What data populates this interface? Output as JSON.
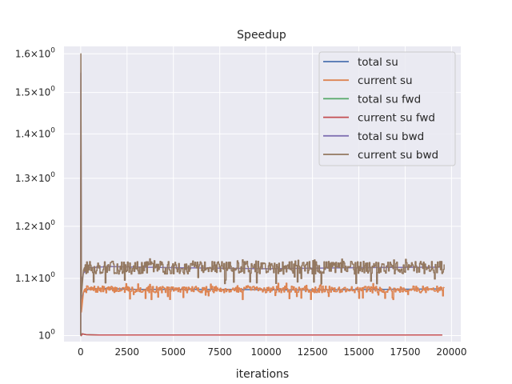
{
  "chart_data": {
    "type": "line",
    "title": "Speedup",
    "xlabel": "iterations",
    "ylabel": "",
    "yscale": "log",
    "xlim": [
      -900,
      20500
    ],
    "ylim": [
      0.99,
      1.62
    ],
    "grid": true,
    "legend_position": "top-right",
    "x_ticks": [
      0,
      2500,
      5000,
      7500,
      10000,
      12500,
      15000,
      17500,
      20000
    ],
    "x_tick_labels": [
      "0",
      "2500",
      "5000",
      "7500",
      "10000",
      "12500",
      "15000",
      "17500",
      "20000"
    ],
    "y_ticks": [
      1.0,
      1.1,
      1.2,
      1.3,
      1.4,
      1.5,
      1.6
    ],
    "y_tick_labels": [
      {
        "base": "10",
        "exp": "0",
        "coef": ""
      },
      {
        "base": "10",
        "exp": "0",
        "coef": "1.1×"
      },
      {
        "base": "10",
        "exp": "0",
        "coef": "1.2×"
      },
      {
        "base": "10",
        "exp": "0",
        "coef": "1.3×"
      },
      {
        "base": "10",
        "exp": "0",
        "coef": "1.4×"
      },
      {
        "base": "10",
        "exp": "0",
        "coef": "1.5×"
      },
      {
        "base": "10",
        "exp": "0",
        "coef": "1.6×"
      }
    ],
    "x_end": 19600,
    "series": [
      {
        "name": "total su",
        "color": "#4c72b0",
        "kind": "smooth",
        "points": [
          [
            0,
            1.0
          ],
          [
            10,
            1.3
          ],
          [
            40,
            1.06
          ],
          [
            150,
            1.075
          ],
          [
            400,
            1.08
          ],
          [
            1000,
            1.082
          ],
          [
            3000,
            1.08
          ],
          [
            8000,
            1.08
          ],
          [
            12000,
            1.079
          ],
          [
            16000,
            1.08
          ],
          [
            19600,
            1.081
          ]
        ]
      },
      {
        "name": "current su",
        "color": "#dd8452",
        "kind": "noisy",
        "seed": 7,
        "base": 1.08,
        "amp": 0.006,
        "spike_prob": 0.06,
        "spike_down": -0.018,
        "spike_up": 0.012,
        "points": [
          [
            0,
            1.0
          ],
          [
            10,
            1.35
          ],
          [
            40,
            1.04
          ],
          [
            150,
            1.075
          ],
          [
            19600,
            1.08
          ]
        ]
      },
      {
        "name": "total su fwd",
        "color": "#55a868",
        "kind": "smooth",
        "points": [
          [
            0,
            1.0
          ],
          [
            30,
            1.0
          ],
          [
            60,
            1.003
          ],
          [
            300,
            1.0015
          ],
          [
            1000,
            1.001
          ],
          [
            19600,
            1.001
          ]
        ]
      },
      {
        "name": "current su fwd",
        "color": "#c44e52",
        "kind": "smooth",
        "points": [
          [
            0,
            1.0
          ],
          [
            40,
            1.0
          ],
          [
            80,
            1.003
          ],
          [
            300,
            1.0015
          ],
          [
            1000,
            1.001
          ],
          [
            19600,
            1.001
          ]
        ]
      },
      {
        "name": "total su bwd",
        "color": "#8172b3",
        "kind": "smooth",
        "points": [
          [
            0,
            1.0
          ],
          [
            10,
            1.55
          ],
          [
            40,
            1.09
          ],
          [
            150,
            1.11
          ],
          [
            500,
            1.12
          ],
          [
            1500,
            1.122
          ],
          [
            5000,
            1.12
          ],
          [
            10000,
            1.118
          ],
          [
            15000,
            1.12
          ],
          [
            19600,
            1.121
          ]
        ]
      },
      {
        "name": "current su bwd",
        "color": "#937860",
        "kind": "noisy",
        "seed": 13,
        "base": 1.12,
        "amp": 0.012,
        "spike_prob": 0.08,
        "spike_down": -0.03,
        "spike_up": 0.018,
        "points": [
          [
            0,
            1.0
          ],
          [
            10,
            1.6
          ],
          [
            40,
            1.07
          ],
          [
            150,
            1.115
          ],
          [
            19600,
            1.12
          ]
        ]
      }
    ]
  }
}
